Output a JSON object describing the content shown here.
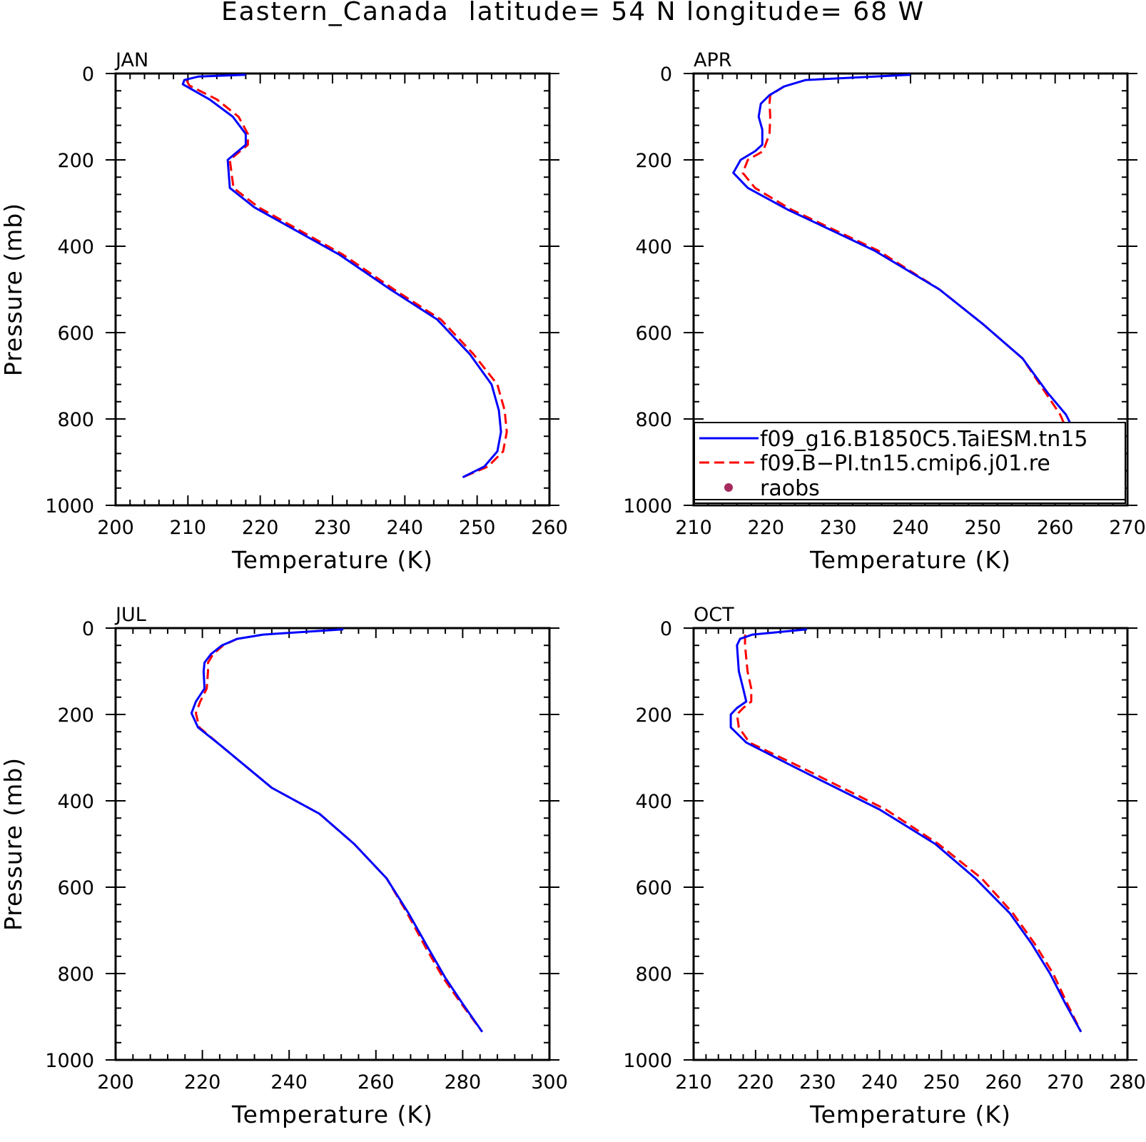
{
  "figure_title": "Eastern_Canada  latitude= 54 N longitude= 68 W",
  "legend": {
    "items": [
      {
        "label": "f09_g16.B1850C5.TaiESM.tn15",
        "color": "#0000ff",
        "style": "solid"
      },
      {
        "label": "f09.B−PI.tn15.cmip6.j01.re",
        "color": "#ff0000",
        "style": "dashed"
      },
      {
        "label": "raobs",
        "color": "#a52a5e",
        "style": "marker"
      }
    ]
  },
  "chart_data": [
    {
      "type": "line",
      "panel": "JAN",
      "xlabel": "Temperature (K)",
      "ylabel": "Pressure (mb)",
      "xlim": [
        200,
        260
      ],
      "ylim": [
        1000,
        0
      ],
      "y_reversed": true,
      "xticks": [
        200,
        210,
        220,
        230,
        240,
        250,
        260
      ],
      "yticks": [
        0,
        200,
        400,
        600,
        800,
        1000
      ],
      "series": [
        {
          "name": "f09_g16.B1850C5.TaiESM.tn15",
          "color": "#0000ff",
          "dash": "solid",
          "x": [
            218,
            211.5,
            209.5,
            209.3,
            213,
            216.2,
            218,
            218,
            215.5,
            215.8,
            219.2,
            231,
            238,
            244.5,
            249,
            252,
            253,
            253.3,
            252.8,
            251,
            248
          ],
          "y": [
            3,
            7,
            15,
            25,
            60,
            100,
            140,
            165,
            200,
            265,
            310,
            420,
            500,
            570,
            650,
            720,
            780,
            830,
            875,
            910,
            935
          ]
        },
        {
          "name": "f09.B−PI.tn15.cmip6.j01.re",
          "color": "#ff0000",
          "dash": "dashed",
          "x": [
            209.8,
            210.2,
            214,
            217,
            218.3,
            218.3,
            215.8,
            216.3,
            219.8,
            231.5,
            238.5,
            245,
            249.5,
            252.8,
            253.8,
            254.1,
            253.6,
            251.5,
            248
          ],
          "y": [
            15,
            28,
            60,
            100,
            140,
            165,
            200,
            265,
            310,
            420,
            500,
            570,
            650,
            720,
            780,
            830,
            875,
            910,
            935
          ]
        }
      ]
    },
    {
      "type": "line",
      "panel": "APR",
      "xlabel": "Temperature (K)",
      "ylabel": "",
      "xlim": [
        210,
        270
      ],
      "ylim": [
        1000,
        0
      ],
      "y_reversed": true,
      "xticks": [
        210,
        220,
        230,
        240,
        250,
        260,
        270
      ],
      "yticks": [
        0,
        200,
        400,
        600,
        800,
        1000
      ],
      "series": [
        {
          "name": "f09_g16.B1850C5.TaiESM.tn15",
          "color": "#0000ff",
          "dash": "solid",
          "x": [
            240,
            225.5,
            222.5,
            220.5,
            219.3,
            219,
            219.5,
            219.5,
            218.5,
            216.5,
            215.5,
            217.5,
            223,
            235,
            244,
            250,
            255.5,
            259,
            261.5,
            263,
            264,
            265.5,
            267
          ],
          "y": [
            3,
            15,
            30,
            50,
            70,
            100,
            130,
            165,
            180,
            200,
            230,
            265,
            315,
            410,
            500,
            580,
            660,
            740,
            790,
            840,
            880,
            915,
            940
          ]
        },
        {
          "name": "f09.B−PI.tn15.cmip6.j01.re",
          "color": "#ff0000",
          "dash": "dashed",
          "x": [
            222.5,
            220.6,
            220.5,
            220.6,
            220.5,
            219.6,
            217.5,
            216.8,
            218.5,
            223.5,
            235.5,
            244,
            250,
            255.5,
            258.7,
            260.7,
            262,
            262.5,
            263.5,
            265.7
          ],
          "y": [
            30,
            50,
            70,
            100,
            140,
            180,
            200,
            230,
            265,
            315,
            410,
            500,
            580,
            660,
            740,
            790,
            840,
            880,
            915,
            940
          ]
        }
      ]
    },
    {
      "type": "line",
      "panel": "JUL",
      "xlabel": "Temperature (K)",
      "ylabel": "Pressure (mb)",
      "xlim": [
        200,
        300
      ],
      "ylim": [
        1000,
        0
      ],
      "y_reversed": true,
      "xticks": [
        200,
        220,
        240,
        260,
        280,
        300
      ],
      "yticks": [
        0,
        200,
        400,
        600,
        800,
        1000
      ],
      "series": [
        {
          "name": "f09_g16.B1850C5.TaiESM.tn15",
          "color": "#0000ff",
          "dash": "solid",
          "x": [
            252.5,
            234,
            228,
            224.5,
            222,
            220.5,
            220.3,
            220.5,
            218.5,
            217.5,
            219,
            224,
            236,
            247,
            255,
            262.5,
            267.5,
            272,
            276,
            280,
            284.5
          ],
          "y": [
            3,
            15,
            25,
            40,
            60,
            80,
            100,
            140,
            170,
            197,
            230,
            270,
            370,
            430,
            500,
            580,
            660,
            740,
            810,
            870,
            935
          ]
        },
        {
          "name": "f09.B−PI.tn15.cmip6.j01.re",
          "color": "#ff0000",
          "dash": "dashed",
          "x": [
            228,
            224.8,
            222.5,
            221.3,
            221.3,
            221,
            219.5,
            218.5,
            219.3,
            224,
            236,
            247,
            255,
            262.5,
            267.2,
            271.5,
            275.5,
            279.7,
            284.5
          ],
          "y": [
            25,
            40,
            60,
            80,
            100,
            140,
            170,
            197,
            230,
            270,
            370,
            430,
            500,
            580,
            660,
            740,
            810,
            870,
            935
          ]
        }
      ]
    },
    {
      "type": "line",
      "panel": "OCT",
      "xlabel": "Temperature (K)",
      "ylabel": "",
      "xlim": [
        210,
        280
      ],
      "ylim": [
        1000,
        0
      ],
      "y_reversed": true,
      "xticks": [
        210,
        220,
        230,
        240,
        250,
        260,
        270,
        280
      ],
      "yticks": [
        0,
        200,
        400,
        600,
        800,
        1000
      ],
      "series": [
        {
          "name": "f09_g16.B1850C5.TaiESM.tn15",
          "color": "#0000ff",
          "dash": "solid",
          "x": [
            228.3,
            219.5,
            217.5,
            217,
            217.3,
            218,
            218.5,
            217,
            216,
            216,
            218.5,
            226,
            240,
            249,
            255.5,
            261,
            264.5,
            267.5,
            270,
            272.5
          ],
          "y": [
            3,
            15,
            25,
            40,
            100,
            140,
            170,
            185,
            200,
            230,
            265,
            320,
            420,
            500,
            580,
            660,
            730,
            800,
            870,
            935
          ]
        },
        {
          "name": "f09.B−PI.tn15.cmip6.j01.re",
          "color": "#ff0000",
          "dash": "dashed",
          "x": [
            218.3,
            218.3,
            218.7,
            219.3,
            219.3,
            218,
            217,
            217.3,
            219,
            227,
            241,
            249.5,
            256.5,
            261.5,
            265,
            268,
            270.3,
            272.5
          ],
          "y": [
            15,
            40,
            100,
            140,
            170,
            185,
            200,
            230,
            265,
            320,
            420,
            500,
            580,
            660,
            730,
            800,
            870,
            935
          ]
        }
      ]
    }
  ]
}
